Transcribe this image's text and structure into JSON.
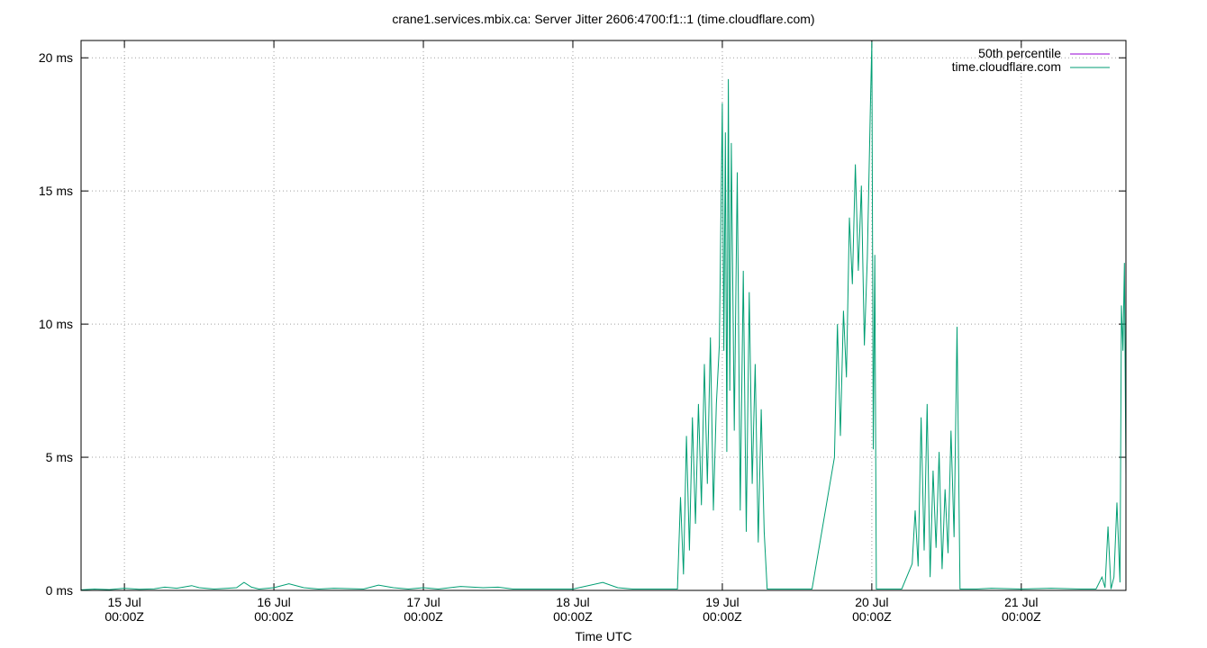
{
  "chart_data": {
    "type": "line",
    "title": "crane1.services.mbix.ca: Server Jitter 2606:4700:f1::1 (time.cloudflare.com)",
    "xlabel": "Time UTC",
    "ylabel": "",
    "x_unit": "days since 15 Jul 00:00Z",
    "xlim": [
      -0.29,
      6.7
    ],
    "ylim": [
      0,
      20.65
    ],
    "grid": true,
    "legend_position": "top-right",
    "x_ticks": [
      {
        "x": 0,
        "day": "15 Jul",
        "time": "00:00Z"
      },
      {
        "x": 1,
        "day": "16 Jul",
        "time": "00:00Z"
      },
      {
        "x": 2,
        "day": "17 Jul",
        "time": "00:00Z"
      },
      {
        "x": 3,
        "day": "18 Jul",
        "time": "00:00Z"
      },
      {
        "x": 4,
        "day": "19 Jul",
        "time": "00:00Z"
      },
      {
        "x": 5,
        "day": "20 Jul",
        "time": "00:00Z"
      },
      {
        "x": 6,
        "day": "21 Jul",
        "time": "00:00Z"
      }
    ],
    "y_ticks": [
      {
        "y": 0,
        "label": "0 ms"
      },
      {
        "y": 5,
        "label": "5 ms"
      },
      {
        "y": 10,
        "label": "10 ms"
      },
      {
        "y": 15,
        "label": "15 ms"
      },
      {
        "y": 20,
        "label": "20 ms"
      }
    ],
    "series": [
      {
        "name": "50th percentile",
        "color": "#9400d3",
        "points": [
          [
            -0.29,
            0.0
          ],
          [
            6.7,
            0.0
          ]
        ]
      },
      {
        "name": "time.cloudflare.com",
        "color": "#009e73",
        "points": [
          [
            -0.29,
            0.02
          ],
          [
            -0.2,
            0.05
          ],
          [
            -0.1,
            0.03
          ],
          [
            0.0,
            0.08
          ],
          [
            0.1,
            0.04
          ],
          [
            0.2,
            0.06
          ],
          [
            0.27,
            0.12
          ],
          [
            0.35,
            0.08
          ],
          [
            0.45,
            0.18
          ],
          [
            0.5,
            0.1
          ],
          [
            0.6,
            0.05
          ],
          [
            0.75,
            0.1
          ],
          [
            0.8,
            0.3
          ],
          [
            0.85,
            0.12
          ],
          [
            0.9,
            0.05
          ],
          [
            1.0,
            0.1
          ],
          [
            1.1,
            0.25
          ],
          [
            1.2,
            0.1
          ],
          [
            1.3,
            0.05
          ],
          [
            1.4,
            0.08
          ],
          [
            1.6,
            0.05
          ],
          [
            1.7,
            0.2
          ],
          [
            1.8,
            0.1
          ],
          [
            1.9,
            0.05
          ],
          [
            2.0,
            0.1
          ],
          [
            2.1,
            0.05
          ],
          [
            2.25,
            0.15
          ],
          [
            2.4,
            0.1
          ],
          [
            2.5,
            0.12
          ],
          [
            2.6,
            0.05
          ],
          [
            2.8,
            0.05
          ],
          [
            3.0,
            0.05
          ],
          [
            3.2,
            0.3
          ],
          [
            3.3,
            0.1
          ],
          [
            3.4,
            0.05
          ],
          [
            3.6,
            0.05
          ],
          [
            3.7,
            0.05
          ],
          [
            3.72,
            3.5
          ],
          [
            3.74,
            0.6
          ],
          [
            3.76,
            5.8
          ],
          [
            3.78,
            1.5
          ],
          [
            3.8,
            6.5
          ],
          [
            3.82,
            2.5
          ],
          [
            3.84,
            7.0
          ],
          [
            3.86,
            3.2
          ],
          [
            3.88,
            8.5
          ],
          [
            3.9,
            4.0
          ],
          [
            3.92,
            9.5
          ],
          [
            3.94,
            3.0
          ],
          [
            3.96,
            7.0
          ],
          [
            3.98,
            9.2
          ],
          [
            4.0,
            18.3
          ],
          [
            4.01,
            9.0
          ],
          [
            4.02,
            17.2
          ],
          [
            4.03,
            5.2
          ],
          [
            4.04,
            19.2
          ],
          [
            4.05,
            7.5
          ],
          [
            4.06,
            16.8
          ],
          [
            4.08,
            6.0
          ],
          [
            4.1,
            15.7
          ],
          [
            4.12,
            3.0
          ],
          [
            4.14,
            12.0
          ],
          [
            4.16,
            2.2
          ],
          [
            4.18,
            11.2
          ],
          [
            4.2,
            4.0
          ],
          [
            4.22,
            8.5
          ],
          [
            4.24,
            1.8
          ],
          [
            4.26,
            6.8
          ],
          [
            4.28,
            2.2
          ],
          [
            4.3,
            0.05
          ],
          [
            4.4,
            0.05
          ],
          [
            4.6,
            0.05
          ],
          [
            4.75,
            5.0
          ],
          [
            4.77,
            10.0
          ],
          [
            4.79,
            5.8
          ],
          [
            4.81,
            10.5
          ],
          [
            4.83,
            8.0
          ],
          [
            4.85,
            14.0
          ],
          [
            4.87,
            11.5
          ],
          [
            4.89,
            16.0
          ],
          [
            4.91,
            12.0
          ],
          [
            4.93,
            15.2
          ],
          [
            4.95,
            9.2
          ],
          [
            4.97,
            12.5
          ],
          [
            4.99,
            18.0
          ],
          [
            5.0,
            20.6
          ],
          [
            5.01,
            5.3
          ],
          [
            5.02,
            12.6
          ],
          [
            5.03,
            0.05
          ],
          [
            5.1,
            0.05
          ],
          [
            5.2,
            0.05
          ],
          [
            5.27,
            1.0
          ],
          [
            5.29,
            3.0
          ],
          [
            5.31,
            0.9
          ],
          [
            5.33,
            6.5
          ],
          [
            5.35,
            1.5
          ],
          [
            5.37,
            7.0
          ],
          [
            5.39,
            0.5
          ],
          [
            5.41,
            4.5
          ],
          [
            5.43,
            1.6
          ],
          [
            5.45,
            5.2
          ],
          [
            5.47,
            0.8
          ],
          [
            5.49,
            3.8
          ],
          [
            5.51,
            1.4
          ],
          [
            5.53,
            6.0
          ],
          [
            5.55,
            2.0
          ],
          [
            5.57,
            9.9
          ],
          [
            5.59,
            0.05
          ],
          [
            5.7,
            0.05
          ],
          [
            5.8,
            0.08
          ],
          [
            6.0,
            0.05
          ],
          [
            6.2,
            0.08
          ],
          [
            6.4,
            0.05
          ],
          [
            6.5,
            0.05
          ],
          [
            6.54,
            0.5
          ],
          [
            6.56,
            0.1
          ],
          [
            6.58,
            2.4
          ],
          [
            6.6,
            0.05
          ],
          [
            6.62,
            0.5
          ],
          [
            6.64,
            3.3
          ],
          [
            6.66,
            0.3
          ],
          [
            6.67,
            10.7
          ],
          [
            6.68,
            9.0
          ],
          [
            6.69,
            12.3
          ],
          [
            6.7,
            4.3
          ]
        ]
      }
    ]
  }
}
